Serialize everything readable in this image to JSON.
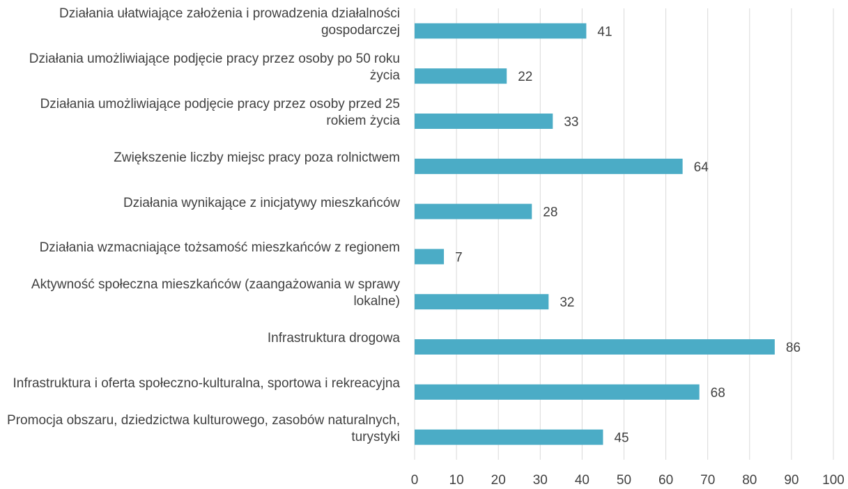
{
  "chart_data": {
    "type": "bar",
    "orientation": "horizontal",
    "categories": [
      "Działania ułatwiające założenia i prowadzenia działalności gospodarczej",
      "Działania umożliwiające podjęcie pracy przez osoby po 50 roku życia",
      "Działania umożliwiające podjęcie pracy przez osoby przed 25 rokiem życia",
      "Zwiększenie liczby miejsc pracy poza rolnictwem",
      "Działania wynikające z inicjatywy mieszkańców",
      "Działania wzmacniające tożsamość mieszkańców z regionem",
      "Aktywność społeczna mieszkańców (zaangażowania w sprawy lokalne)",
      "Infrastruktura drogowa",
      "Infrastruktura i oferta społeczno-kulturalna, sportowa i rekreacyjna",
      "Promocja obszaru, dziedzictwa kulturowego, zasobów naturalnych, turystyki"
    ],
    "values": [
      41,
      22,
      33,
      64,
      28,
      7,
      32,
      86,
      68,
      45
    ],
    "color": "#4bacc6",
    "xlim": [
      0,
      100
    ],
    "xticks": [
      0,
      10,
      20,
      30,
      40,
      50,
      60,
      70,
      80,
      90,
      100
    ],
    "grid": true
  }
}
